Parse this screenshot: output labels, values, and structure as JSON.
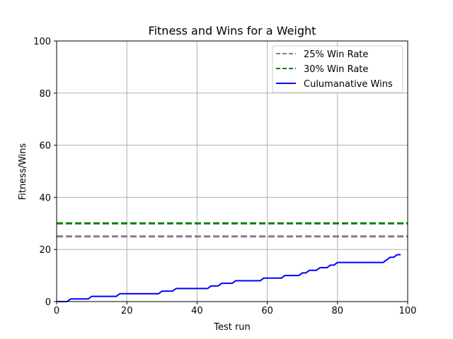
{
  "chart_data": {
    "type": "line",
    "title": "Fitness and Wins for a Weight",
    "xlabel": "Test run",
    "ylabel": "Fitness/Wins",
    "xlim": [
      0,
      100
    ],
    "ylim": [
      0,
      100
    ],
    "xticks": [
      0,
      20,
      40,
      60,
      80,
      100
    ],
    "yticks": [
      0,
      20,
      40,
      60,
      80,
      100
    ],
    "grid": true,
    "legend_position": "top-right",
    "series": [
      {
        "name": "25% Win Rate",
        "style": "dashed",
        "color": "#808080",
        "x": [
          0,
          100
        ],
        "y": [
          25,
          25
        ]
      },
      {
        "name": "30% Win Rate",
        "style": "dashed",
        "color": "#008000",
        "x": [
          0,
          100
        ],
        "y": [
          30,
          30
        ]
      },
      {
        "name": "Culumanative Wins",
        "style": "solid",
        "color": "#0000ff",
        "x": [
          0,
          3,
          4,
          9,
          10,
          17,
          18,
          29,
          30,
          33,
          34,
          43,
          44,
          46,
          47,
          50,
          51,
          58,
          59,
          64,
          65,
          69,
          70,
          71,
          72,
          74,
          75,
          77,
          78,
          79,
          80,
          93,
          94,
          95,
          96,
          97,
          98
        ],
        "y": [
          0,
          0,
          1,
          1,
          2,
          2,
          3,
          3,
          4,
          4,
          5,
          5,
          6,
          6,
          7,
          7,
          8,
          8,
          9,
          9,
          10,
          10,
          11,
          11,
          12,
          12,
          13,
          13,
          14,
          14,
          15,
          15,
          16,
          17,
          17,
          18,
          18
        ]
      }
    ]
  }
}
